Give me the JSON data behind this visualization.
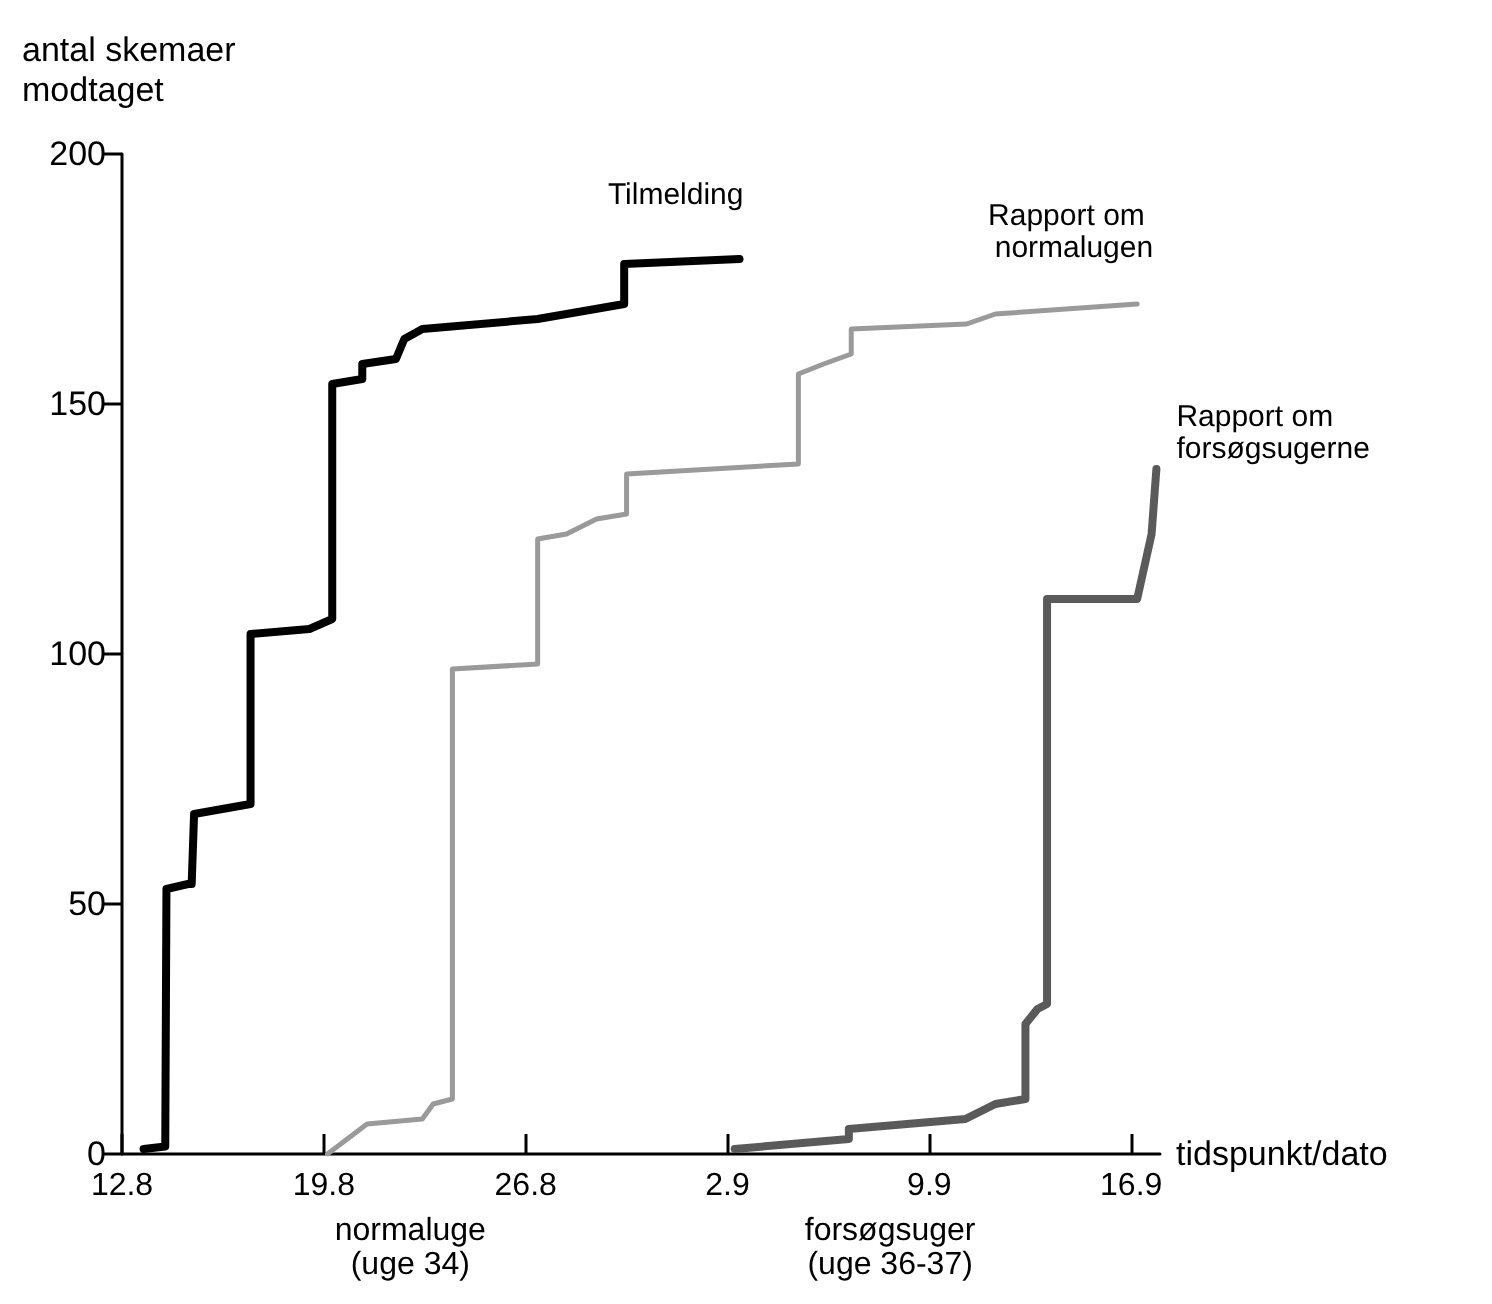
{
  "chart_data": {
    "type": "line",
    "ylabel": "antal skemaer\nmodtaget",
    "xlabel": "tidspunkt/dato",
    "xlim": [
      "--08-12",
      "--09-17"
    ],
    "xticks": [
      {
        "value": "--08-12",
        "label": "12.8"
      },
      {
        "value": "--08-19",
        "label": "19.8"
      },
      {
        "value": "--08-26",
        "label": "26.8"
      },
      {
        "value": "--09-02",
        "label": "2.9"
      },
      {
        "value": "--09-09",
        "label": "9.9"
      },
      {
        "value": "--09-16",
        "label": "16.9"
      }
    ],
    "ylim": [
      0,
      200
    ],
    "yticks": [
      0,
      50,
      100,
      150,
      200
    ],
    "grid": false,
    "marker": "none",
    "line_style": "solid",
    "annotations": [
      "normaluge\n(uge 34)",
      "forsøgsuger\n(uge 36-37)"
    ],
    "series": [
      {
        "name": "Tilmelding",
        "color": "#000000",
        "x": [
          "--08-12T18:00",
          "--08-13T12:00",
          "--08-13T13:00",
          "--08-13T13:00",
          "--08-14T07:00",
          "--08-14T10:00",
          "--08-14T12:00",
          "--08-16T11:00",
          "--08-16T11:00",
          "--08-18T12:00",
          "--08-19T07:00",
          "--08-19T07:00",
          "--08-20T08:00",
          "--08-20T08:00",
          "--08-21T12:00",
          "--08-21T19:00",
          "--08-22T10:00",
          "--08-26T10:00",
          "--08-29T10:00",
          "--08-29T10:00",
          "--09-02T10:00"
        ],
        "values": [
          1,
          1.5,
          1.5,
          53,
          54,
          54,
          68,
          70,
          104,
          105,
          107,
          154,
          155,
          158,
          159,
          163,
          165,
          167,
          170,
          178,
          179
        ]
      },
      {
        "name": "Rapport om normalugen",
        "color": "#9a9a9a",
        "x": [
          "--08-19T03:00",
          "--08-20T12:00",
          "--08-22T10:00",
          "--08-22T19:00",
          "--08-23T11:00",
          "--08-23T11:00",
          "--08-26T10:00",
          "--08-26T10:00",
          "--08-27T10:00",
          "--08-28T11:00",
          "--08-29T12:00",
          "--08-29T12:00",
          "--09-04T11:00",
          "--09-04T11:00",
          "--09-05T08:00",
          "--09-06T07:00",
          "--09-06T07:00",
          "--09-10T07:00",
          "--09-11T07:00",
          "--09-16T05:00"
        ],
        "values": [
          0,
          6,
          7,
          10,
          11,
          97,
          98,
          123,
          124,
          127,
          128,
          136,
          138,
          156,
          158,
          160,
          165,
          166,
          168,
          170
        ]
      },
      {
        "name": "Rapport om forsøgsugerne",
        "color": "#5a5a5a",
        "x": [
          "--09-02T06:00",
          "--09-06T05:00",
          "--09-06T05:00",
          "--09-10T06:00",
          "--09-11T07:00",
          "--09-12T08:00",
          "--09-12T08:00",
          "--09-12T18:00",
          "--09-13T02:00",
          "--09-13T02:00",
          "--09-16T05:00",
          "--09-16T17:00",
          "--09-16T21:00"
        ],
        "values": [
          1,
          3,
          5,
          7,
          10,
          11,
          26,
          29,
          30,
          111,
          111,
          124,
          137
        ]
      }
    ]
  }
}
